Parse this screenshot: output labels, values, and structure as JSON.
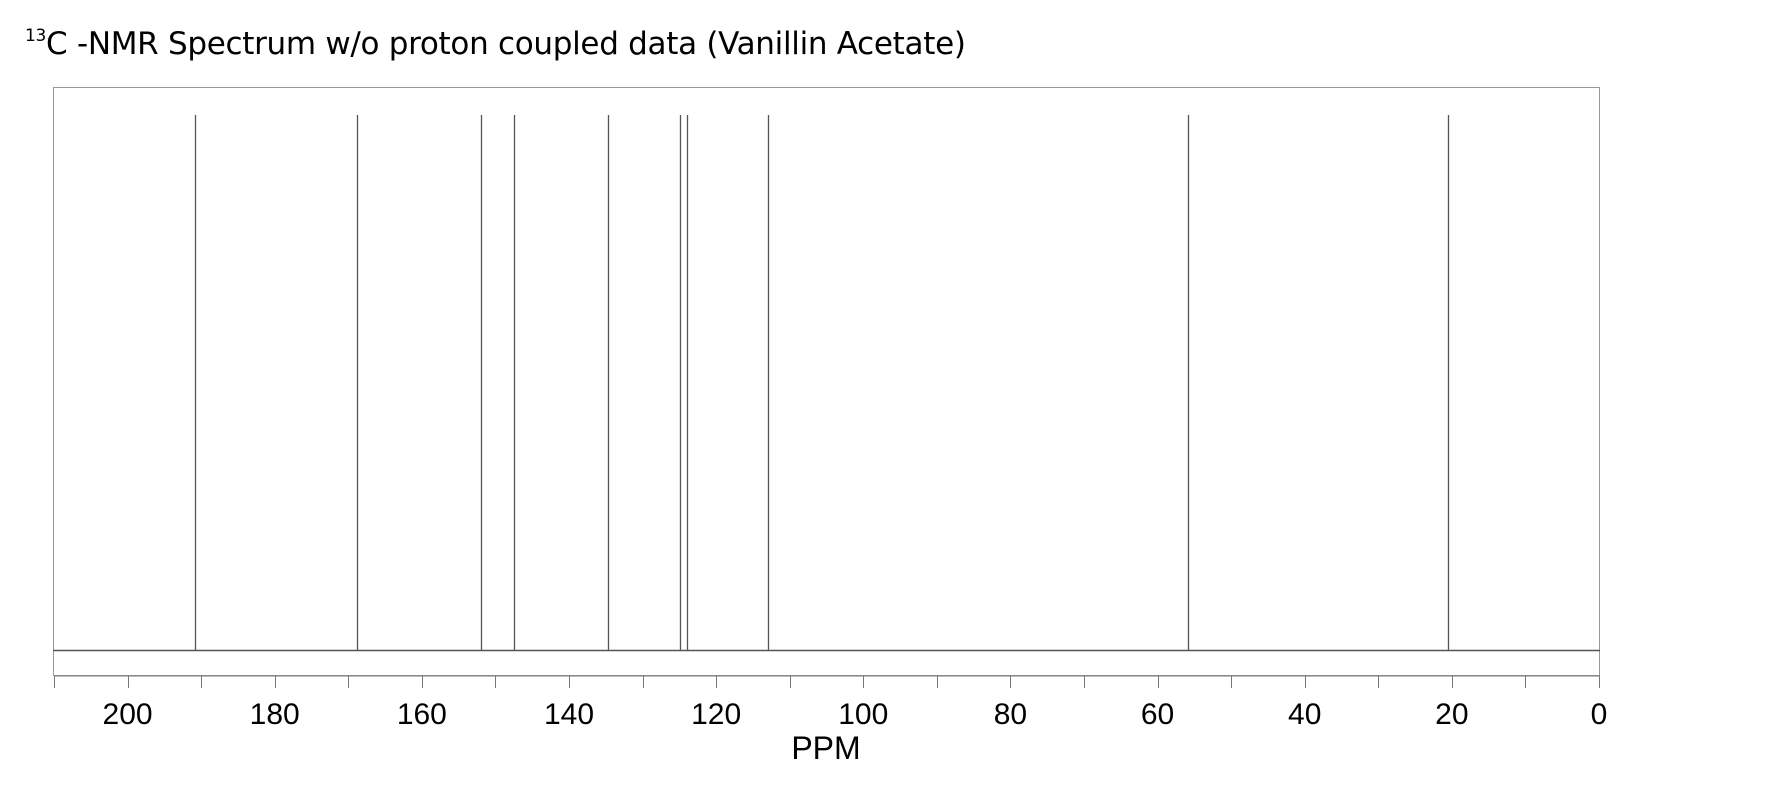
{
  "chart_data": {
    "type": "bar",
    "title_sup": "13",
    "title": "C -NMR Spectrum w/o proton coupled data (Vanillin Acetate)",
    "xlabel": "PPM",
    "ylabel": "",
    "xlim": [
      210,
      0
    ],
    "reversed_x": true,
    "tick_labels": [
      "200",
      "180",
      "160",
      "140",
      "120",
      "100",
      "80",
      "60",
      "40",
      "20",
      "0"
    ],
    "tick_values": [
      200,
      180,
      160,
      140,
      120,
      100,
      80,
      60,
      40,
      20,
      0
    ],
    "minor_tick_step": 10,
    "peaks": [
      190.8,
      168.8,
      151.9,
      147.5,
      134.7,
      124.9,
      123.9,
      113.0,
      55.8,
      20.5
    ],
    "grid": false,
    "legend": "none",
    "colors": {
      "frame": "#9a9a9a",
      "peak": "#555555",
      "axis": "#555555"
    }
  }
}
